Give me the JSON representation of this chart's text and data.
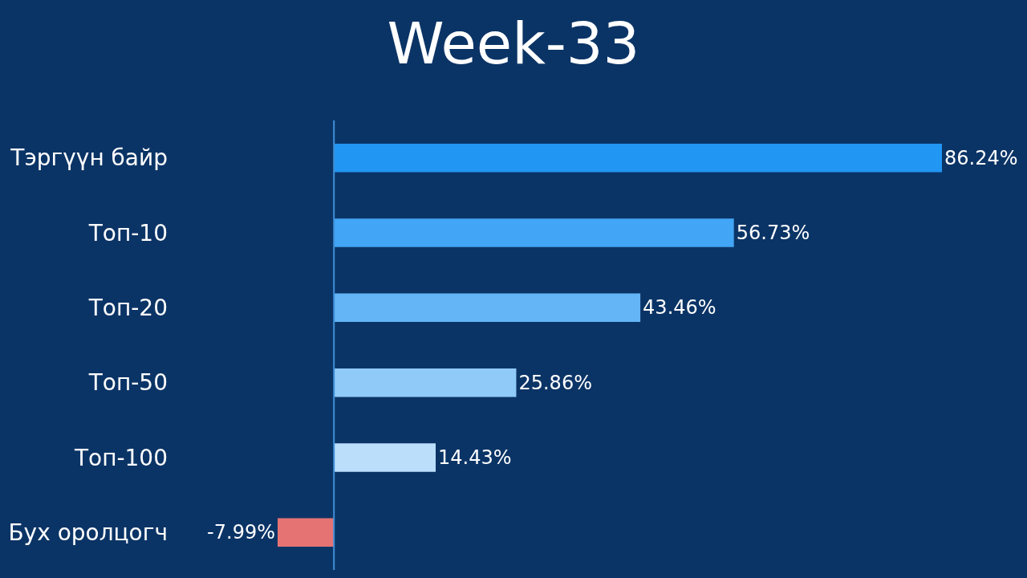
{
  "chart_data": {
    "type": "bar",
    "title": "Week-33",
    "orientation": "horizontal",
    "categories": [
      "Тэргүүн байр",
      "Топ-10",
      "Топ-20",
      "Топ-50",
      "Топ-100",
      "Бух оролцогч"
    ],
    "values": [
      86.24,
      56.73,
      43.46,
      25.86,
      14.43,
      -7.99
    ],
    "value_labels": [
      "86.24%",
      "56.73%",
      "43.46%",
      "25.86%",
      "14.43%",
      "-7.99%"
    ],
    "colors": [
      "#2196f3",
      "#42a5f5",
      "#64b5f6",
      "#90caf9",
      "#bbdefb",
      "#e57373"
    ],
    "ref_lines": [
      {
        "axis": "x",
        "value": 0,
        "color": "#3f8fd8"
      }
    ],
    "tick_labels": "y"
  }
}
